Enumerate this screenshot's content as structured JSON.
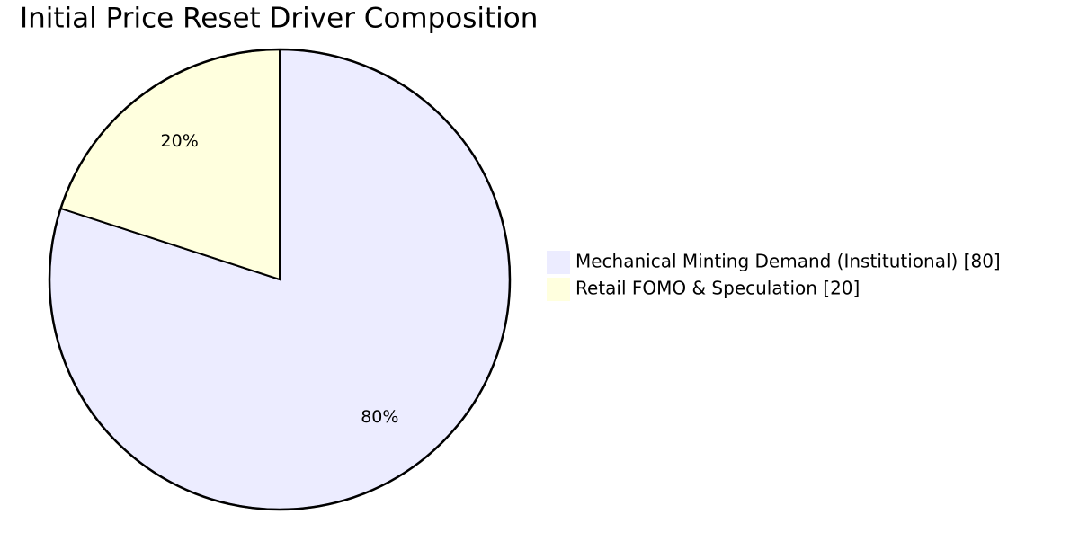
{
  "chart_data": {
    "type": "pie",
    "title": "Initial Price Reset Driver Composition",
    "categories": [
      "Mechanical Minting Demand (Institutional) [80]",
      "Retail FOMO & Speculation [20]"
    ],
    "values": [
      80,
      20
    ],
    "value_labels": [
      "80%",
      "20%"
    ],
    "colors": [
      "#ececff",
      "#ffffde"
    ],
    "legend": "right"
  }
}
